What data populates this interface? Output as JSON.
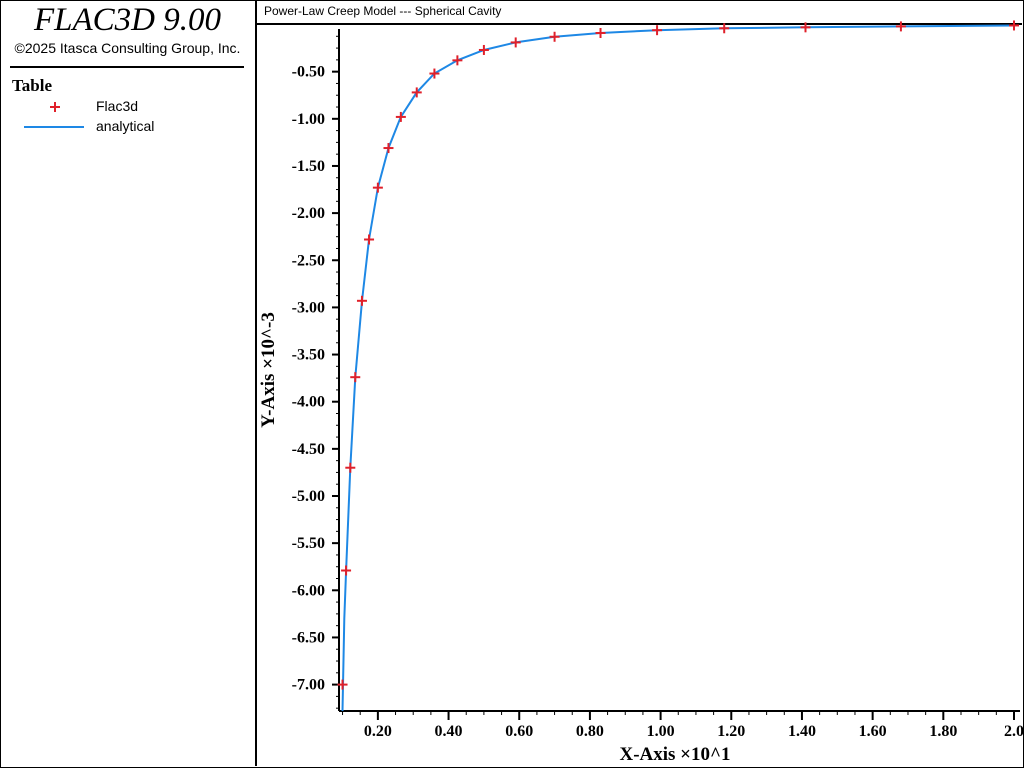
{
  "app": {
    "title": "FLAC3D 9.00",
    "copyright": "©2025 Itasca Consulting Group, Inc."
  },
  "legend": {
    "heading": "Table",
    "items": [
      {
        "label": "Flac3d",
        "marker": "plus",
        "color": "#e0202a"
      },
      {
        "label": "analytical",
        "marker": "line",
        "color": "#1e88e5"
      }
    ]
  },
  "chart_data": {
    "type": "line",
    "title": "Power-Law Creep Model --- Spherical Cavity",
    "xlabel": "X-Axis ×10^1",
    "ylabel": "Y-Axis ×10^-3",
    "xlim": [
      0.09,
      2.0
    ],
    "ylim": [
      -7.28,
      -0.09
    ],
    "x_ticks": [
      "0.20",
      "0.40",
      "0.60",
      "0.80",
      "1.00",
      "1.20",
      "1.40",
      "1.60",
      "1.80",
      "2.0"
    ],
    "y_ticks": [
      "-0.50",
      "-1.00",
      "-1.50",
      "-2.00",
      "-2.50",
      "-3.00",
      "-3.50",
      "-4.00",
      "-4.50",
      "-5.00",
      "-5.50",
      "-6.00",
      "-6.50",
      "-7.00"
    ],
    "grid": false,
    "legend_placement": "left-panel",
    "series": [
      {
        "name": "Flac3d",
        "type": "scatter",
        "color": "#e0202a",
        "x": [
          0.1,
          0.11,
          0.122,
          0.136,
          0.155,
          0.175,
          0.2,
          0.23,
          0.265,
          0.31,
          0.36,
          0.425,
          0.5,
          0.59,
          0.7,
          0.83,
          0.99,
          1.18,
          1.41,
          1.68,
          2.0
        ],
        "y": [
          -7.0,
          -5.79,
          -4.7,
          -3.74,
          -2.93,
          -2.28,
          -1.73,
          -1.31,
          -0.98,
          -0.72,
          -0.52,
          -0.38,
          -0.27,
          -0.19,
          -0.13,
          -0.09,
          -0.06,
          -0.04,
          -0.03,
          -0.02,
          -0.01
        ]
      },
      {
        "name": "analytical",
        "type": "line",
        "color": "#1e88e5",
        "x": [
          0.1,
          0.105,
          0.11,
          0.122,
          0.136,
          0.155,
          0.175,
          0.2,
          0.23,
          0.265,
          0.31,
          0.36,
          0.425,
          0.5,
          0.59,
          0.7,
          0.83,
          0.99,
          1.18,
          1.41,
          1.68,
          2.0
        ],
        "y": [
          -7.28,
          -6.3,
          -5.79,
          -4.7,
          -3.74,
          -2.93,
          -2.28,
          -1.73,
          -1.31,
          -0.98,
          -0.72,
          -0.52,
          -0.38,
          -0.27,
          -0.19,
          -0.13,
          -0.09,
          -0.06,
          -0.04,
          -0.03,
          -0.02,
          -0.01
        ]
      }
    ]
  }
}
